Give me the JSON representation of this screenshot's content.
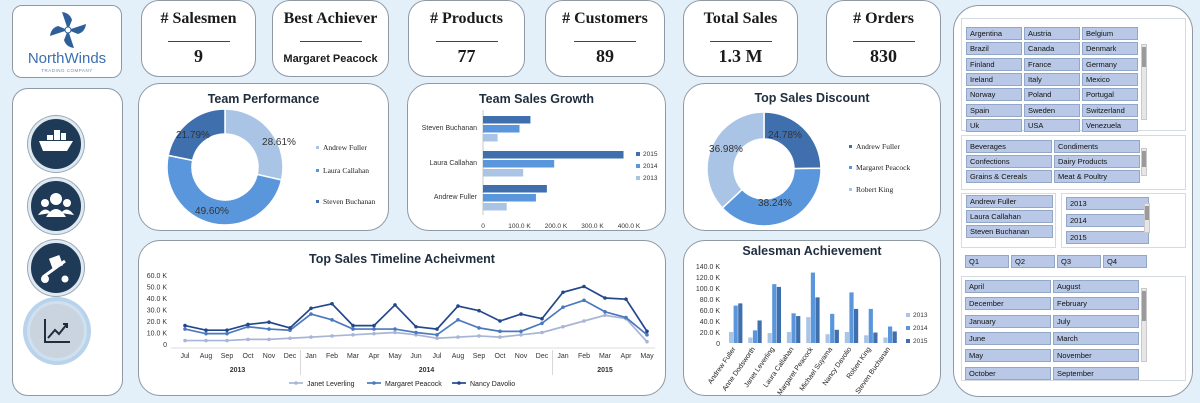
{
  "logo": {
    "name": "NorthWinds",
    "tagline": "TRADING COMPANY"
  },
  "kpis": {
    "salesmen": {
      "label": "# Salesmen",
      "value": "9"
    },
    "best": {
      "label": "Best Achiever",
      "value": "Margaret Peacock"
    },
    "products": {
      "label": "# Products",
      "value": "77"
    },
    "customers": {
      "label": "# Customers",
      "value": "89"
    },
    "sales": {
      "label": "Total Sales",
      "value": "1.3 M"
    },
    "orders": {
      "label": "# Orders",
      "value": "830"
    }
  },
  "nav": [
    {
      "icon": "ship-icon"
    },
    {
      "icon": "customers-icon"
    },
    {
      "icon": "hand-truck-icon"
    },
    {
      "icon": "trend-chart-icon"
    }
  ],
  "colors": {
    "light": "#aac4e6",
    "mid": "#5a96db",
    "dark": "#3f6fad",
    "line_light": "#a8b5d6",
    "line_mid": "#4c79bd",
    "line_dark": "#23478c"
  },
  "chart_data": [
    {
      "type": "pie",
      "title": "Team Performance",
      "categories": [
        "Andrew Fuller",
        "Laura Callahan",
        "Steven Buchanan"
      ],
      "values": [
        28.61,
        49.6,
        21.79
      ],
      "labels": [
        "28.61%",
        "49.60%",
        "21.79%"
      ],
      "legend": "right"
    },
    {
      "type": "bar",
      "title": "Team Sales Growth",
      "categories": [
        "Steven Buchanan",
        "Laura Callahan",
        "Andrew Fuller"
      ],
      "series": [
        {
          "name": "2015",
          "values": [
            130,
            385,
            175
          ]
        },
        {
          "name": "2014",
          "values": [
            100,
            195,
            145
          ]
        },
        {
          "name": "2013",
          "values": [
            40,
            110,
            65
          ]
        }
      ],
      "xlim": [
        0,
        400
      ],
      "xticks": [
        "0",
        "100.0 K",
        "200.0 K",
        "300.0 K",
        "400.0 K"
      ],
      "legend": "right"
    },
    {
      "type": "pie",
      "title": "Top Sales Discount",
      "categories": [
        "Andrew Fuller",
        "Margaret Peacock",
        "Robert King"
      ],
      "values": [
        24.78,
        38.24,
        36.98
      ],
      "labels": [
        "24.78%",
        "38.24%",
        "36.98%"
      ],
      "legend": "right"
    },
    {
      "type": "line",
      "title": "Top Sales Timeline Acheivment",
      "x": [
        "Jul",
        "Aug",
        "Sep",
        "Oct",
        "Nov",
        "Dec",
        "Jan",
        "Feb",
        "Mar",
        "Apr",
        "May",
        "Jun",
        "Jul",
        "Aug",
        "Sep",
        "Oct",
        "Nov",
        "Dec",
        "Jan",
        "Feb",
        "Mar",
        "Apr",
        "May"
      ],
      "groups": [
        {
          "label": "2013",
          "count": 6
        },
        {
          "label": "2014",
          "count": 12
        },
        {
          "label": "2015",
          "count": 5
        }
      ],
      "series": [
        {
          "name": "Janet Leverling",
          "values": [
            3,
            3,
            3,
            4,
            4,
            5,
            6,
            7,
            8,
            9,
            10,
            8,
            5,
            6,
            7,
            6,
            8,
            10,
            15,
            20,
            25,
            22,
            2
          ]
        },
        {
          "name": "Margaret Peacock",
          "values": [
            13,
            9,
            9,
            15,
            13,
            12,
            26,
            21,
            13,
            13,
            13,
            10,
            8,
            21,
            14,
            11,
            11,
            18,
            32,
            38,
            28,
            23,
            8
          ]
        },
        {
          "name": "Nancy Davolio",
          "values": [
            16,
            12,
            12,
            17,
            19,
            14,
            31,
            35,
            16,
            16,
            34,
            15,
            13,
            33,
            29,
            20,
            26,
            22,
            45,
            50,
            40,
            39,
            11
          ]
        }
      ],
      "ylim": [
        0,
        60
      ],
      "yticks": [
        "0",
        "10.0 K",
        "20.0 K",
        "30.0 K",
        "40.0 K",
        "50.0 K",
        "60.0 K"
      ],
      "legend": "bottom"
    },
    {
      "type": "bar",
      "title": "Salesman Achievement",
      "categories": [
        "Andrew Fuller",
        "Anne Dodsworth",
        "Janet Leverling",
        "Laura Callahan",
        "Margaret Peacock",
        "Michael Suyama",
        "Nancy Davolio",
        "Robert King",
        "Steven Buchanan"
      ],
      "series": [
        {
          "name": "2013",
          "values": [
            20,
            10,
            18,
            20,
            47,
            16,
            20,
            14,
            10
          ]
        },
        {
          "name": "2014",
          "values": [
            68,
            23,
            107,
            54,
            128,
            53,
            92,
            62,
            30
          ]
        },
        {
          "name": "2015",
          "values": [
            72,
            41,
            102,
            49,
            83,
            24,
            62,
            19,
            21
          ]
        }
      ],
      "ylim": [
        0,
        140
      ],
      "yticks": [
        "0",
        "20.0 K",
        "40.0 K",
        "60.0 K",
        "80.0 K",
        "100.0 K",
        "120.0 K",
        "140.0 K"
      ],
      "legend": "right"
    }
  ],
  "slicers": {
    "countries": [
      "Argentina",
      "Austria",
      "Belgium",
      "Brazil",
      "Canada",
      "Denmark",
      "Finland",
      "France",
      "Germany",
      "Ireland",
      "Italy",
      "Mexico",
      "Norway",
      "Poland",
      "Portugal",
      "Spain",
      "Sweden",
      "Switzerland",
      "Uk",
      "USA",
      "Venezuela"
    ],
    "categories": [
      "Beverages",
      "Condiments",
      "Confections",
      "Dairy Products",
      "Grains & Cereals",
      "Meat & Poultry"
    ],
    "employees": [
      "Andrew Fuller",
      "Laura Callahan",
      "Steven Buchanan"
    ],
    "years": [
      "2013",
      "2014",
      "2015"
    ],
    "quarters": [
      "Q1",
      "Q2",
      "Q3",
      "Q4"
    ],
    "months": [
      "April",
      "August",
      "December",
      "February",
      "January",
      "July",
      "June",
      "March",
      "May",
      "November",
      "October",
      "September"
    ]
  }
}
